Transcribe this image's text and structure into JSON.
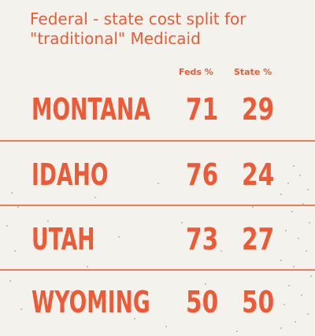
{
  "chart_data": {
    "type": "table",
    "title": "Federal - state cost split for \"traditional\" Medicaid",
    "columns": [
      "Feds %",
      "State %"
    ],
    "rows": [
      {
        "state": "MONTANA",
        "feds": "71",
        "state_pct": "29"
      },
      {
        "state": "IDAHO",
        "feds": "76",
        "state_pct": "24"
      },
      {
        "state": "UTAH",
        "feds": "73",
        "state_pct": "27"
      },
      {
        "state": "WYOMING",
        "feds": "50",
        "state_pct": "50"
      }
    ]
  },
  "colors": {
    "accent": "#ee5a35",
    "background": "#f3f2ec",
    "divider": "#ee7a5c"
  }
}
